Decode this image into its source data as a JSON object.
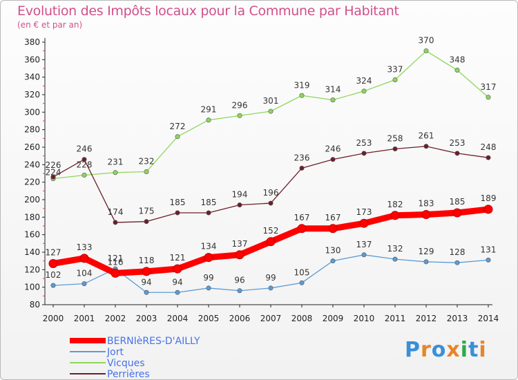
{
  "title": "Evolution des Impôts locaux pour la Commune par Habitant",
  "subtitle": "(en € et par an)",
  "logo_text": "Proxiti",
  "chart_data": {
    "type": "line",
    "title": "Evolution des Impôts locaux pour la Commune par Habitant",
    "subtitle": "(en € et par an)",
    "x": [
      "2000",
      "2001",
      "2002",
      "2003",
      "2004",
      "2005",
      "2006",
      "2007",
      "2008",
      "2009",
      "2010",
      "2011",
      "2012",
      "2013",
      "2014"
    ],
    "ylim": [
      80,
      380
    ],
    "yticks": [
      80,
      100,
      120,
      140,
      160,
      180,
      200,
      220,
      240,
      260,
      280,
      300,
      320,
      340,
      360,
      380
    ],
    "grid": false,
    "legend": "bottom-left",
    "series": [
      {
        "name": "BERNIèRES-D'AILLY",
        "color": "#ff0000",
        "values": [
          127,
          133,
          116,
          118,
          121,
          134,
          137,
          152,
          167,
          167,
          173,
          182,
          183,
          185,
          189
        ]
      },
      {
        "name": "Jort",
        "color": "#5b9bd5",
        "values": [
          102,
          104,
          121,
          94,
          94,
          99,
          96,
          99,
          105,
          130,
          137,
          132,
          129,
          128,
          131
        ]
      },
      {
        "name": "Vicques",
        "color": "#8ed65a",
        "values": [
          224,
          228,
          231,
          232,
          272,
          291,
          296,
          301,
          319,
          314,
          324,
          337,
          370,
          348,
          317
        ]
      },
      {
        "name": "Perrières",
        "color": "#6b1f2a",
        "values": [
          226,
          246,
          174,
          175,
          185,
          185,
          194,
          196,
          236,
          246,
          253,
          258,
          261,
          253,
          248
        ]
      }
    ]
  }
}
